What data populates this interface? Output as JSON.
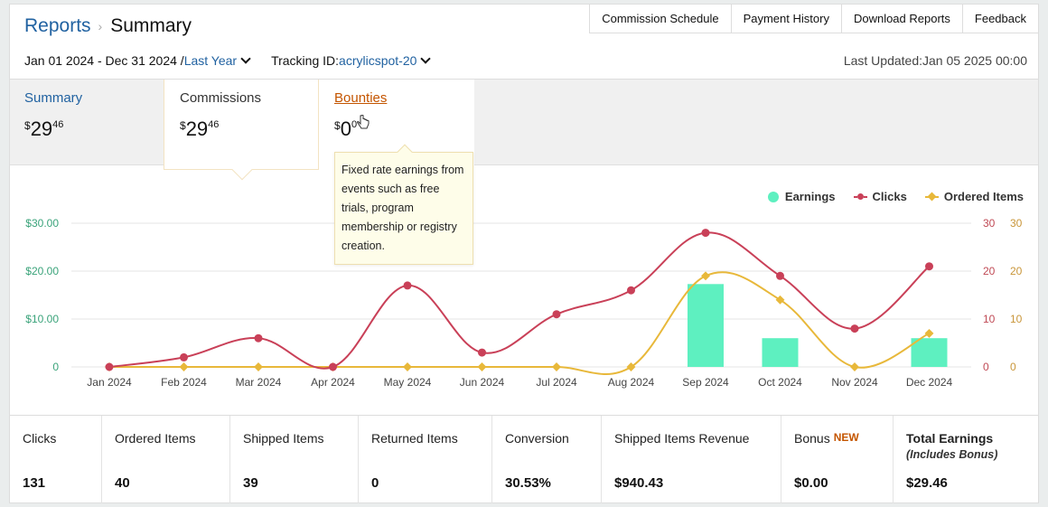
{
  "breadcrumb": {
    "parent": "Reports",
    "separator": "›",
    "current": "Summary"
  },
  "top_links": [
    "Commission Schedule",
    "Payment History",
    "Download Reports",
    "Feedback"
  ],
  "filters": {
    "date_range": "Jan 01 2024 - Dec 31 2024 /",
    "period": "Last Year",
    "tracking_label": "Tracking ID:",
    "tracking_id": "acrylicspot-20"
  },
  "last_updated": "Last Updated:Jan 05 2025 00:00",
  "cards": {
    "summary": {
      "label": "Summary",
      "currency": "$",
      "whole": "29",
      "cents": "46"
    },
    "commissions": {
      "label": "Commissions",
      "currency": "$",
      "whole": "29",
      "cents": "46"
    },
    "bounties": {
      "label": "Bounties",
      "currency": "$",
      "whole": "0",
      "cents": "0"
    }
  },
  "tooltip": "Fixed rate earnings from events such as free trials, program membership or registry creation.",
  "legend": {
    "earnings": "Earnings",
    "clicks": "Clicks",
    "ordered": "Ordered Items"
  },
  "colors": {
    "earnings": "#5ef0c0",
    "clicks": "#c94058",
    "ordered": "#e8b83a",
    "link": "#2162a1",
    "accent": "#c45500",
    "earn_axis": "#3aa37a",
    "clicks_axis": "#c04a55",
    "ordered_axis": "#c9963a"
  },
  "chart_data": {
    "type": "bar+line",
    "categories": [
      "Jan 2024",
      "Feb 2024",
      "Mar 2024",
      "Apr 2024",
      "May 2024",
      "Jun 2024",
      "Jul 2024",
      "Aug 2024",
      "Sep 2024",
      "Oct 2024",
      "Nov 2024",
      "Dec 2024"
    ],
    "left_axis_ticks": [
      "0",
      "$10.00",
      "$20.00",
      "$30.00"
    ],
    "right_axis_ticks_clicks": [
      "0",
      "10",
      "20",
      "30"
    ],
    "right_axis_ticks_ordered": [
      "0",
      "10",
      "20",
      "30"
    ],
    "ylim": [
      0,
      30
    ],
    "series": [
      {
        "name": "Earnings",
        "type": "bar",
        "values": [
          0,
          0,
          0,
          0,
          0,
          0,
          0,
          0,
          17.3,
          6.0,
          0,
          6.0
        ]
      },
      {
        "name": "Clicks",
        "type": "line",
        "values": [
          0,
          2,
          6,
          0,
          17,
          3,
          11,
          16,
          28,
          19,
          8,
          21
        ]
      },
      {
        "name": "Ordered Items",
        "type": "line",
        "values": [
          0,
          0,
          0,
          0,
          0,
          0,
          0,
          0,
          19,
          14,
          0,
          7
        ]
      }
    ],
    "grid": true,
    "legend_position": "top-right"
  },
  "stats": [
    {
      "label": "Clicks",
      "value": "131"
    },
    {
      "label": "Ordered Items",
      "value": "40"
    },
    {
      "label": "Shipped Items",
      "value": "39"
    },
    {
      "label": "Returned Items",
      "value": "0"
    },
    {
      "label": "Conversion",
      "value": "30.53%"
    },
    {
      "label": "Shipped Items Revenue",
      "value": "$940.43"
    },
    {
      "label": "Bonus",
      "badge": "NEW",
      "value": "$0.00"
    },
    {
      "label": "Total Earnings",
      "sub": "(Includes Bonus)",
      "value": "$29.46"
    }
  ]
}
